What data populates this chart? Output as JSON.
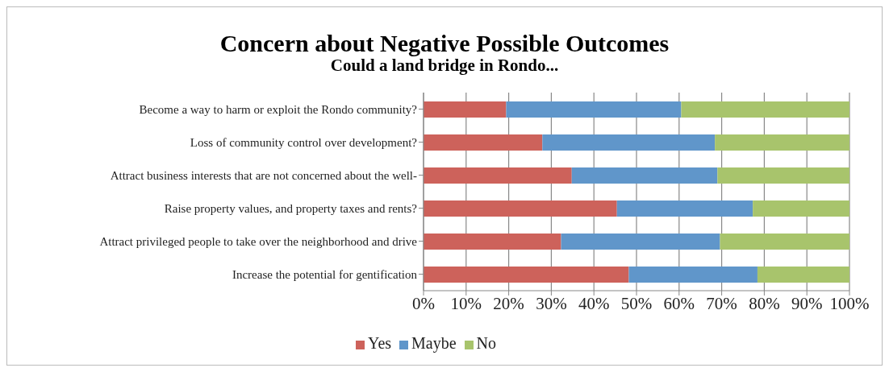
{
  "chart_data": {
    "type": "bar",
    "orientation": "horizontal",
    "stacked": true,
    "title": "Concern about Negative Possible Outcomes",
    "subtitle": "Could a land bridge in Rondo...",
    "categories": [
      "Become a way to harm or exploit the Rondo community?",
      "Loss of community control over development?",
      "Attract business interests that are not concerned about the well-",
      "Raise property values, and property taxes and rents?",
      "Attract privileged people to take over the neighborhood and drive",
      "Increase the potential for gentification"
    ],
    "series": [
      {
        "name": "Yes",
        "color": "#cd625b",
        "values": [
          19.4,
          27.9,
          34.8,
          45.4,
          32.3,
          48.2
        ]
      },
      {
        "name": "Maybe",
        "color": "#6096ca",
        "values": [
          41.1,
          40.5,
          34.2,
          31.9,
          37.3,
          30.2
        ]
      },
      {
        "name": "No",
        "color": "#a8c46c",
        "values": [
          39.5,
          31.6,
          31.0,
          22.7,
          30.4,
          21.6
        ]
      }
    ],
    "xlim": [
      0,
      100
    ],
    "xticks": [
      {
        "value": 0,
        "label": "0%"
      },
      {
        "value": 10,
        "label": "10%"
      },
      {
        "value": 20,
        "label": "20%"
      },
      {
        "value": 30,
        "label": "30%"
      },
      {
        "value": 40,
        "label": "40%"
      },
      {
        "value": 50,
        "label": "50%"
      },
      {
        "value": 60,
        "label": "60%"
      },
      {
        "value": 70,
        "label": "70%"
      },
      {
        "value": 80,
        "label": "80%"
      },
      {
        "value": 90,
        "label": "90%"
      },
      {
        "value": 100,
        "label": "100%"
      }
    ],
    "grid": "x",
    "legend": "bottom"
  }
}
